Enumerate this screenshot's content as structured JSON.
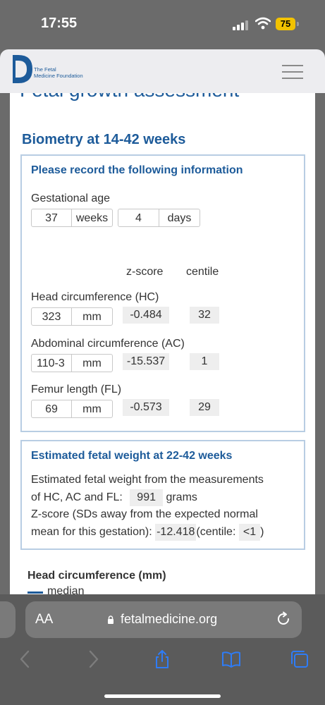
{
  "status_bar": {
    "time": "17:55",
    "battery": "75"
  },
  "header": {
    "logo_line1": "The Fetal",
    "logo_line2": "Medicine Foundation",
    "brand_color": "#1d5b9a",
    "menu_icon": "hamburger-icon"
  },
  "page": {
    "clipped_title": "Fetal growth assessment",
    "section_title": "Biometry at 14-42 weeks"
  },
  "record_box": {
    "title": "Please record the following information",
    "gestational_age_label": "Gestational age",
    "weeks_value": "37",
    "weeks_unit": "weeks",
    "days_value": "4",
    "days_unit": "days",
    "col_zscore": "z-score",
    "col_centile": "centile",
    "measurements": [
      {
        "label": "Head circumference (HC)",
        "value": "323",
        "unit": "mm",
        "zscore": "-0.484",
        "centile": "32"
      },
      {
        "label": "Abdominal circumference (AC)",
        "value": "110-3",
        "unit": "mm",
        "zscore": "-15.537",
        "centile": "1"
      },
      {
        "label": "Femur length (FL)",
        "value": "69",
        "unit": "mm",
        "zscore": "-0.573",
        "centile": "29"
      }
    ]
  },
  "efw_box": {
    "title": "Estimated fetal weight at 22-42 weeks",
    "line1": "Estimated fetal weight from the measurements",
    "line2_prefix": "of HC, AC and FL:",
    "weight_value": "991",
    "weight_unit": "grams",
    "line3": "Z-score (SDs away from the expected normal",
    "line4_prefix": "mean for this gestation):",
    "zscore_value": "-12.418",
    "centile_prefix": "(centile:",
    "centile_value": "<1",
    "centile_suffix": ")"
  },
  "chart_section": {
    "title": "Head circumference (mm)",
    "legend_median": "median"
  },
  "browser": {
    "aa_label": "AA",
    "url": "fetalmedicine.org"
  }
}
